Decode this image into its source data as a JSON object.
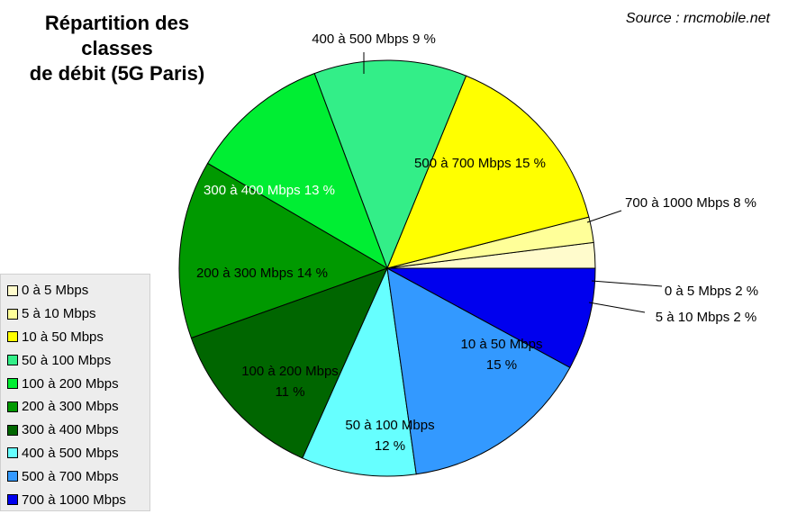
{
  "title_line1": "Répartition des classes",
  "title_line2": "de débit (5G Paris)",
  "source": "Source : rncmobile.net",
  "chart_data": {
    "type": "pie",
    "title": "Répartition des classes de débit (5G Paris)",
    "start": "east, counter-clockwise",
    "slices": [
      {
        "legend": "0 à 5 Mbps",
        "value": 2,
        "color": "#fffbcc",
        "label_lines": [
          "0 à 5 Mbps 2 %"
        ],
        "label_color": "#000000",
        "outside": true
      },
      {
        "legend": "5 à 10 Mbps",
        "value": 2,
        "color": "#ffff99",
        "label_lines": [
          "5 à 10 Mbps  2 %"
        ],
        "label_color": "#000000",
        "outside": true
      },
      {
        "legend": "10 à 50 Mbps",
        "value": 15,
        "color": "#ffff00",
        "label_lines": [
          "10 à 50 Mbps",
          "15 %"
        ],
        "label_color": "#000000",
        "outside": false
      },
      {
        "legend": "50 à 100 Mbps",
        "value": 12,
        "color": "#33ee88",
        "label_lines": [
          "50 à 100 Mbps",
          "12 %"
        ],
        "label_color": "#000000",
        "outside": false
      },
      {
        "legend": "100 à 200 Mbps",
        "value": 11,
        "color": "#00ee33",
        "label_lines": [
          "100 à 200 Mbps",
          "11 %"
        ],
        "label_color": "#000000",
        "outside": false
      },
      {
        "legend": "200 à 300 Mbps",
        "value": 14,
        "color": "#009900",
        "label_lines": [
          "200 à 300 Mbps 14 %"
        ],
        "label_color": "#000000",
        "outside": false
      },
      {
        "legend": "300 à 400 Mbps",
        "value": 13,
        "color": "#006600",
        "label_lines": [
          "300 à 400 Mbps 13 %"
        ],
        "label_color": "#ffffff",
        "outside": false
      },
      {
        "legend": "400 à 500 Mbps",
        "value": 9,
        "color": "#66ffff",
        "label_lines": [
          "400 à 500 Mbps 9 %"
        ],
        "label_color": "#000000",
        "outside": true
      },
      {
        "legend": "500 à 700 Mbps",
        "value": 15,
        "color": "#3399ff",
        "label_lines": [
          "500 à 700 Mbps 15 %"
        ],
        "label_color": "#000000",
        "outside": false
      },
      {
        "legend": "700 à 1000 Mbps",
        "value": 8,
        "color": "#0000ee",
        "label_lines": [
          "700 à 1000 Mbps  8 %"
        ],
        "label_color": "#000000",
        "outside": true
      }
    ]
  }
}
